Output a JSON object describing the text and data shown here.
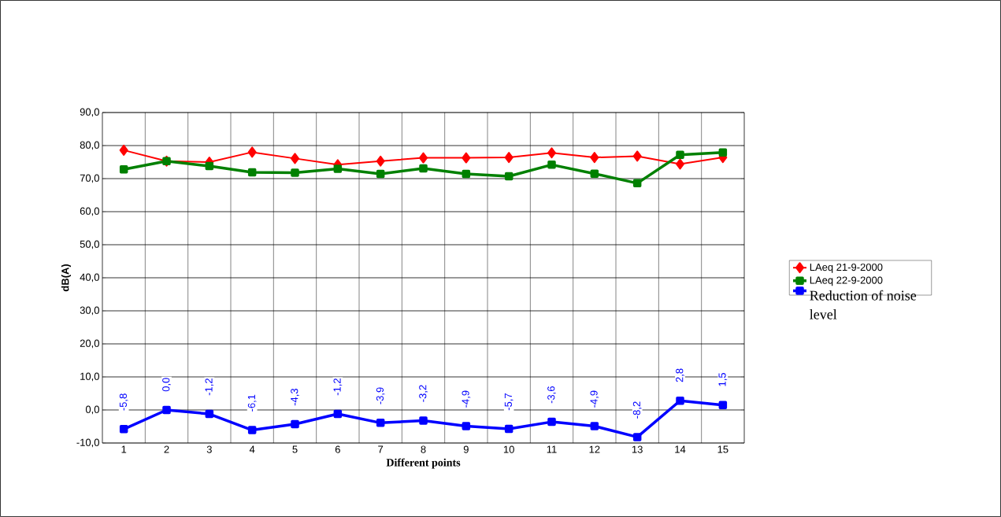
{
  "chart_data": {
    "type": "line",
    "xlabel": "Different points",
    "ylabel": "dB(A)",
    "categories": [
      "1",
      "2",
      "3",
      "4",
      "5",
      "6",
      "7",
      "8",
      "9",
      "10",
      "11",
      "12",
      "13",
      "14",
      "15"
    ],
    "series": [
      {
        "name": "LAeq 21-9-2000",
        "color": "#ff0000",
        "marker": "diamond",
        "values": [
          78.6,
          75.3,
          75.0,
          78.0,
          76.1,
          74.2,
          75.3,
          76.3,
          76.3,
          76.4,
          77.8,
          76.4,
          76.8,
          74.4,
          76.4
        ]
      },
      {
        "name": "LAeq 22-9-2000",
        "color": "#008000",
        "marker": "square",
        "values": [
          72.8,
          75.3,
          73.8,
          71.9,
          71.8,
          73.0,
          71.4,
          73.1,
          71.4,
          70.7,
          74.2,
          71.5,
          68.6,
          77.2,
          77.9
        ]
      },
      {
        "name": "Reduction of noise level",
        "color": "#0000ff",
        "marker": "square",
        "values": [
          -5.8,
          0.0,
          -1.2,
          -6.1,
          -4.3,
          -1.2,
          -3.9,
          -3.2,
          -4.9,
          -5.7,
          -3.6,
          -4.9,
          -8.2,
          2.8,
          1.5
        ],
        "value_labels": [
          "-5,8",
          "0,0",
          "-1,2",
          "-6,1",
          "-4,3",
          "-1,2",
          "-3,9",
          "-3,2",
          "-4,9",
          "-5,7",
          "-3,6",
          "-4,9",
          "-8,2",
          "2,8",
          "1,5"
        ]
      }
    ],
    "ylim": [
      -10,
      90
    ],
    "yticks": [
      {
        "value": -10,
        "label": "-10,0"
      },
      {
        "value": 0,
        "label": "0,0"
      },
      {
        "value": 10,
        "label": "10,0"
      },
      {
        "value": 20,
        "label": "20,0"
      },
      {
        "value": 30,
        "label": "30,0"
      },
      {
        "value": 40,
        "label": "40,0"
      },
      {
        "value": 50,
        "label": "50,0"
      },
      {
        "value": 60,
        "label": "60,0"
      },
      {
        "value": 70,
        "label": "70,0"
      },
      {
        "value": 80,
        "label": "80,0"
      },
      {
        "value": 90,
        "label": "90,0"
      }
    ],
    "grid": true,
    "legend": "right",
    "line_style": "solid"
  }
}
